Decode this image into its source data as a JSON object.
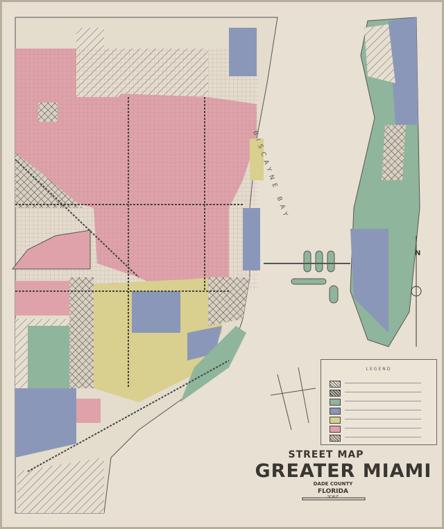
{
  "title": {
    "line1": "STREET MAP",
    "line2": "GREATER MIAMI",
    "county": "DADE COUNTY",
    "state": "FLORIDA",
    "scale_label": "SCALE"
  },
  "labels": {
    "bay": "BISCAYNE BAY",
    "north": "N"
  },
  "legend": {
    "title": "LEGEND",
    "swatches": [
      {
        "key": "undeveloped",
        "color": "#e8e0d2",
        "pattern": "hatch"
      },
      {
        "key": "industrial",
        "color": "#b8b0a2",
        "pattern": "crosshatch"
      },
      {
        "key": "A",
        "color": "#8fb59c"
      },
      {
        "key": "B",
        "color": "#8b97b8"
      },
      {
        "key": "C",
        "color": "#d9cf8e"
      },
      {
        "key": "D",
        "color": "#dfa2aa"
      },
      {
        "key": "other",
        "color": "#cfc6b6",
        "pattern": "hatch"
      }
    ]
  },
  "colors": {
    "paper": "#e8e0d2",
    "grade_a": "#8fb59c",
    "grade_b": "#8b97b8",
    "grade_c": "#d9cf8e",
    "grade_d": "#dfa2aa"
  }
}
